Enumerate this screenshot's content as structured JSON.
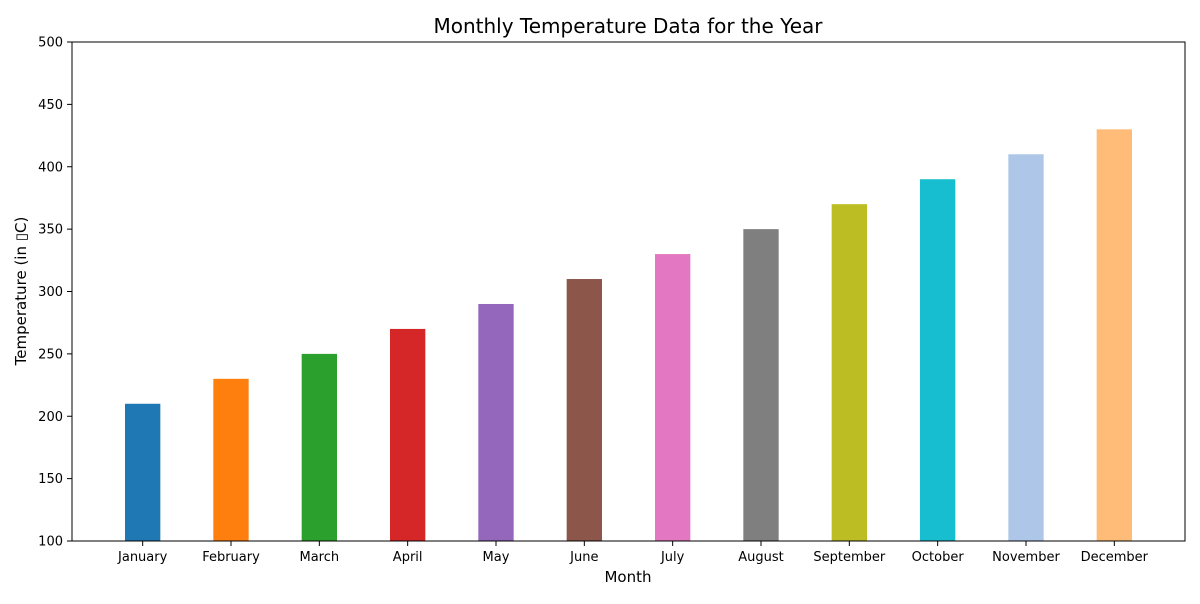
{
  "chart_data": {
    "type": "bar",
    "title": "Monthly Temperature Data for the Year",
    "xlabel": "Month",
    "ylabel": "Temperature (in ▯ C)",
    "ylabel_display": "Temperature (in ▯C)",
    "categories": [
      "January",
      "February",
      "March",
      "April",
      "May",
      "June",
      "July",
      "August",
      "September",
      "October",
      "November",
      "December"
    ],
    "values": [
      210,
      230,
      250,
      270,
      290,
      310,
      330,
      350,
      370,
      390,
      410,
      430
    ],
    "ylim": [
      100,
      500
    ],
    "yticks": [
      100,
      150,
      200,
      250,
      300,
      350,
      400,
      450,
      500
    ],
    "grid": false,
    "colors": [
      "#1f77b4",
      "#ff7f0e",
      "#2ca02c",
      "#d62728",
      "#9467bd",
      "#8c564b",
      "#e377c2",
      "#7f7f7f",
      "#bcbd22",
      "#17becf",
      "#aec7e8",
      "#ffbb78"
    ]
  }
}
